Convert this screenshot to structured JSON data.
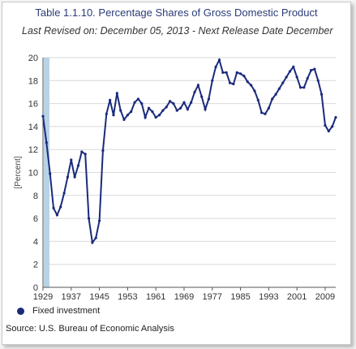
{
  "title": "Table 1.1.10. Percentage Shares of Gross Domestic Product",
  "subtitle": "Last Revised on: December 05, 2013 - Next Release Date December",
  "source": "Source: U.S. Bureau of Economic Analysis",
  "colors": {
    "series": "#1a2a7c",
    "gridline": "#d9d9d9",
    "axis": "#555555",
    "highlight_band": "#b8d3e6"
  },
  "chart_data": {
    "type": "line",
    "title": "Table 1.1.10. Percentage Shares of Gross Domestic Product",
    "ylabel": "[Percent]",
    "xlabel": "",
    "ylim": [
      0,
      20
    ],
    "yticks": [
      0,
      2,
      4,
      6,
      8,
      10,
      12,
      14,
      16,
      18,
      20
    ],
    "xlim": [
      1929,
      2012
    ],
    "xticks": [
      1929,
      1937,
      1945,
      1953,
      1961,
      1969,
      1977,
      1985,
      1993,
      2001,
      2009
    ],
    "grid": true,
    "legend_position": "bottom-left",
    "series": [
      {
        "name": "Fixed investment",
        "x": [
          1929,
          1930,
          1931,
          1932,
          1933,
          1934,
          1935,
          1936,
          1937,
          1938,
          1939,
          1940,
          1941,
          1942,
          1943,
          1944,
          1945,
          1946,
          1947,
          1948,
          1949,
          1950,
          1951,
          1952,
          1953,
          1954,
          1955,
          1956,
          1957,
          1958,
          1959,
          1960,
          1961,
          1962,
          1963,
          1964,
          1965,
          1966,
          1967,
          1968,
          1969,
          1970,
          1971,
          1972,
          1973,
          1974,
          1975,
          1976,
          1977,
          1978,
          1979,
          1980,
          1981,
          1982,
          1983,
          1984,
          1985,
          1986,
          1987,
          1988,
          1989,
          1990,
          1991,
          1992,
          1993,
          1994,
          1995,
          1996,
          1997,
          1998,
          1999,
          2000,
          2001,
          2002,
          2003,
          2004,
          2005,
          2006,
          2007,
          2008,
          2009,
          2010,
          2011,
          2012
        ],
        "values": [
          14.9,
          12.6,
          9.9,
          6.9,
          6.3,
          7.0,
          8.2,
          9.6,
          11.1,
          9.6,
          10.6,
          11.8,
          11.6,
          6.0,
          3.9,
          4.3,
          5.8,
          11.9,
          15.1,
          16.3,
          15.0,
          16.9,
          15.4,
          14.6,
          15.0,
          15.3,
          16.1,
          16.4,
          16.0,
          14.8,
          15.6,
          15.3,
          14.8,
          15.0,
          15.4,
          15.7,
          16.2,
          16.0,
          15.4,
          15.6,
          16.1,
          15.5,
          16.1,
          17.0,
          17.6,
          16.6,
          15.5,
          16.4,
          18.0,
          19.2,
          19.8,
          18.7,
          18.7,
          17.8,
          17.7,
          18.7,
          18.6,
          18.4,
          17.9,
          17.6,
          17.1,
          16.3,
          15.2,
          15.1,
          15.6,
          16.4,
          16.8,
          17.3,
          17.8,
          18.3,
          18.8,
          19.2,
          18.3,
          17.4,
          17.4,
          18.2,
          18.9,
          19.0,
          18.0,
          16.8,
          14.1,
          13.6,
          14.0,
          14.8
        ]
      }
    ]
  }
}
